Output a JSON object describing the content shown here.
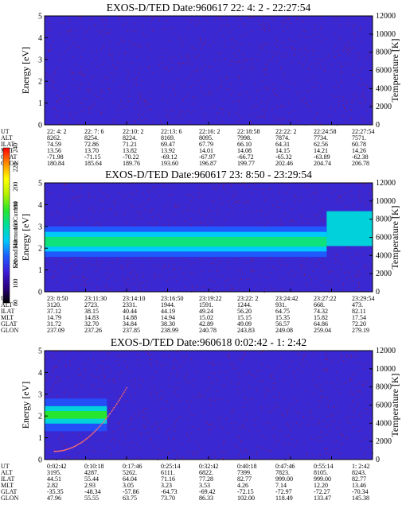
{
  "chart_data": [
    {
      "type": "heatmap",
      "title": "EXOS-D/TED   Date:960617  22: 4: 2 - 22:27:54",
      "ylabel": "Energy [eV]",
      "y2label": "Temperature [K]",
      "ylim": [
        0,
        5
      ],
      "y2lim": [
        0,
        12000
      ],
      "yticks": [
        "0",
        "1",
        "2",
        "3",
        "4",
        "5"
      ],
      "y2ticks": [
        "0",
        "2000",
        "4000",
        "6000",
        "8000",
        "10000",
        "12000"
      ],
      "colorscale_value_range": [
        80,
        240
      ],
      "bands": [],
      "temperature_trace": "none",
      "ephemeris": {
        "labels": [
          "UT",
          "ALT",
          "ILAT",
          "MLT",
          "GLAT",
          "GLON"
        ],
        "columns": [
          [
            "22: 4: 2",
            "8262.",
            "74.59",
            "13.56",
            "-71.98",
            "180.84"
          ],
          [
            "22: 7: 6",
            "8254.",
            "72.86",
            "13.70",
            "-71.15",
            "185.64"
          ],
          [
            "22:10: 2",
            "8224.",
            "71.21",
            "13.82",
            "-70.22",
            "189.76"
          ],
          [
            "22:13: 6",
            "8169.",
            "69.47",
            "13.92",
            "-69.12",
            "193.60"
          ],
          [
            "22:16: 2",
            "8095.",
            "67.79",
            "14.01",
            "-67.97",
            "196.87"
          ],
          [
            "22:18:58",
            "7998.",
            "66.10",
            "14.08",
            "-66.72",
            "199.77"
          ],
          [
            "22:22: 2",
            "7874.",
            "64.31",
            "14.15",
            "-65.32",
            "202.46"
          ],
          [
            "22:24:58",
            "7734.",
            "62.56",
            "14.21",
            "-63.89",
            "204.74"
          ],
          [
            "22:27:54",
            "7571.",
            "60.78",
            "14.26",
            "-62.38",
            "206.78"
          ]
        ]
      }
    },
    {
      "type": "heatmap",
      "title": "EXOS-D/TED   Date:960617  23: 8:50 - 23:29:54",
      "ylabel": "Energy [eV]",
      "y2label": "Temperature [K]",
      "ylim": [
        0,
        5
      ],
      "y2lim": [
        0,
        12000
      ],
      "yticks": [
        "0",
        "1",
        "2",
        "3",
        "4",
        "5"
      ],
      "y2ticks": [
        "0",
        "2000",
        "4000",
        "6000",
        "8000",
        "10000",
        "12000"
      ],
      "colorscale_value_range": [
        80,
        240
      ],
      "bands": [
        {
          "x_from": 0.0,
          "x_to": 0.86,
          "energy_center": 2.3,
          "energy_width": 0.45,
          "level": 165
        },
        {
          "x_from": 0.0,
          "x_to": 0.86,
          "energy_center": 2.3,
          "energy_width": 0.9,
          "level": 145
        },
        {
          "x_from": 0.0,
          "x_to": 0.86,
          "energy_center": 2.3,
          "energy_width": 1.4,
          "level": 128
        },
        {
          "x_from": 0.86,
          "x_to": 1.0,
          "energy_center": 2.9,
          "energy_width": 1.6,
          "level": 150
        }
      ],
      "temperature_trace": "none",
      "ephemeris": {
        "labels": [
          "UT",
          "ALT",
          "ILAT",
          "MLT",
          "GLAT",
          "GLON"
        ],
        "columns": [
          [
            "23: 8:50",
            "3120.",
            "37.12",
            "14.79",
            "31.72",
            "237.09"
          ],
          [
            "23:11:30",
            "2723.",
            "38.15",
            "14.83",
            "32.70",
            "237.26"
          ],
          [
            "23:14:10",
            "2331.",
            "40.44",
            "14.88",
            "34.84",
            "237.85"
          ],
          [
            "23:16:50",
            "1944.",
            "44.19",
            "14.94",
            "38.30",
            "238.99"
          ],
          [
            "23:19:22",
            "1591.",
            "49.24",
            "15.02",
            "42.89",
            "240.78"
          ],
          [
            "23:22: 2",
            "1244.",
            "56.20",
            "15.15",
            "49.09",
            "243.83"
          ],
          [
            "23:24:42",
            "931.",
            "64.75",
            "15.35",
            "56.57",
            "249.08"
          ],
          [
            "23:27:22",
            "668.",
            "74.32",
            "15.82",
            "64.86",
            "259.04"
          ],
          [
            "23:29:54",
            "473.",
            "82.11",
            "17.54",
            "72.20",
            "279.19"
          ]
        ]
      }
    },
    {
      "type": "heatmap",
      "title": "EXOS-D/TED   Date:960618   0:02:42 -  1: 2:42",
      "ylabel": "Energy [eV]",
      "y2label": "Temperature [K]",
      "ylim": [
        0,
        5
      ],
      "y2lim": [
        0,
        12000
      ],
      "yticks": [
        "0",
        "1",
        "2",
        "3",
        "4",
        "5"
      ],
      "y2ticks": [
        "0",
        "2000",
        "4000",
        "6000",
        "8000",
        "10000",
        "12000"
      ],
      "colorscale_value_range": [
        80,
        240
      ],
      "bands": [
        {
          "x_from": 0.0,
          "x_to": 0.19,
          "energy_center": 2.05,
          "energy_width": 0.35,
          "level": 175
        },
        {
          "x_from": 0.0,
          "x_to": 0.19,
          "energy_center": 2.05,
          "energy_width": 0.8,
          "level": 150
        },
        {
          "x_from": 0.0,
          "x_to": 0.19,
          "energy_center": 2.05,
          "energy_width": 1.5,
          "level": 125
        }
      ],
      "temperature_trace": "rising",
      "ephemeris": {
        "labels": [
          "UT",
          "ALT",
          "ILAT",
          "MLT",
          "GLAT",
          "GLON"
        ],
        "columns": [
          [
            "0:02:42",
            "3195.",
            "44.51",
            "2.82",
            "-35.35",
            "47.96"
          ],
          [
            "0:10:18",
            "4287.",
            "55.44",
            "2.93",
            "-48.34",
            "55.55"
          ],
          [
            "0:17:46",
            "5262.",
            "64.04",
            "3.05",
            "-57.86",
            "63.75"
          ],
          [
            "0:25:14",
            "6111.",
            "71.16",
            "3.23",
            "-64.73",
            "73.70"
          ],
          [
            "0:32:42",
            "6822.",
            "77.28",
            "3.53",
            "-69.42",
            "86.33"
          ],
          [
            "0:40:18",
            "7399.",
            "82.77",
            "4.26",
            "-72.15",
            "102.00"
          ],
          [
            "0:47:46",
            "7823.",
            "999.00",
            "7.14",
            "-72.97",
            "118.49"
          ],
          [
            "0:55:14",
            "8105.",
            "999.00",
            "12.20",
            "-72.27",
            "133.47"
          ],
          [
            "1: 2:42",
            "8243.",
            "82.77",
            "13.46",
            "-70.34",
            "145.38"
          ]
        ]
      }
    }
  ],
  "colorbar": {
    "label": "Second Harmonic Current",
    "ticks": [
      "80",
      "100",
      "120",
      "140",
      "160",
      "180",
      "200",
      "220",
      "240"
    ],
    "range": [
      80,
      240
    ],
    "colors": [
      "#000000",
      "#2a0080",
      "#3c1cd8",
      "#1e5aff",
      "#00c8ff",
      "#00e0a0",
      "#28e628",
      "#b4f000",
      "#ffff00",
      "#ff8c00",
      "#ff0000"
    ]
  },
  "colors": {
    "background_low": "#3a28d2",
    "noise": "#8c1450",
    "temperature_trace": "#ff6e6e"
  }
}
